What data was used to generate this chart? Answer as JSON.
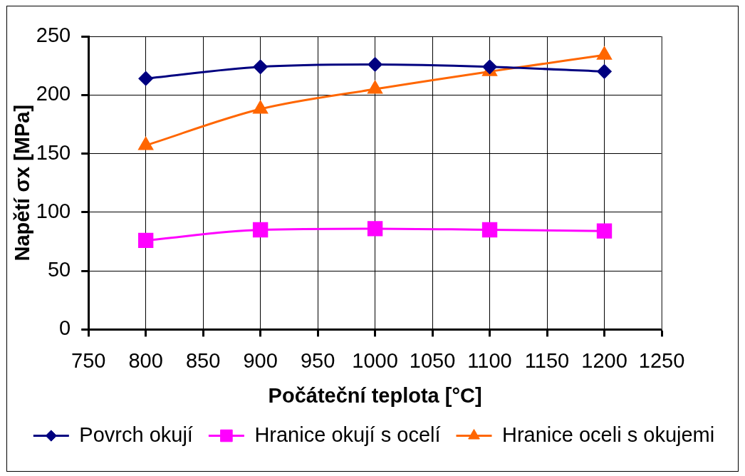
{
  "chart_data": {
    "type": "line",
    "xlabel": "Počáteční teplota [°C]",
    "ylabel": "Napětí σx [MPa]",
    "x": [
      800,
      900,
      1000,
      1100,
      1200
    ],
    "series": [
      {
        "name": "Povrch okují",
        "color": "#000080",
        "marker": "diamond",
        "values": [
          214,
          224,
          226,
          224,
          220
        ]
      },
      {
        "name": "Hranice okují s ocelí",
        "color": "#ff00ff",
        "marker": "square",
        "values": [
          76,
          85,
          86,
          85,
          84
        ]
      },
      {
        "name": "Hranice oceli s okujemi",
        "color": "#ff6600",
        "marker": "triangle",
        "values": [
          157,
          188,
          205,
          220,
          234
        ]
      }
    ],
    "xlim": [
      750,
      1250
    ],
    "xticks": [
      750,
      800,
      850,
      900,
      950,
      1000,
      1050,
      1100,
      1150,
      1200,
      1250
    ],
    "ylim": [
      0,
      250
    ],
    "yticks": [
      0,
      50,
      100,
      150,
      200,
      250
    ],
    "grid": true,
    "legend": "bottom"
  }
}
